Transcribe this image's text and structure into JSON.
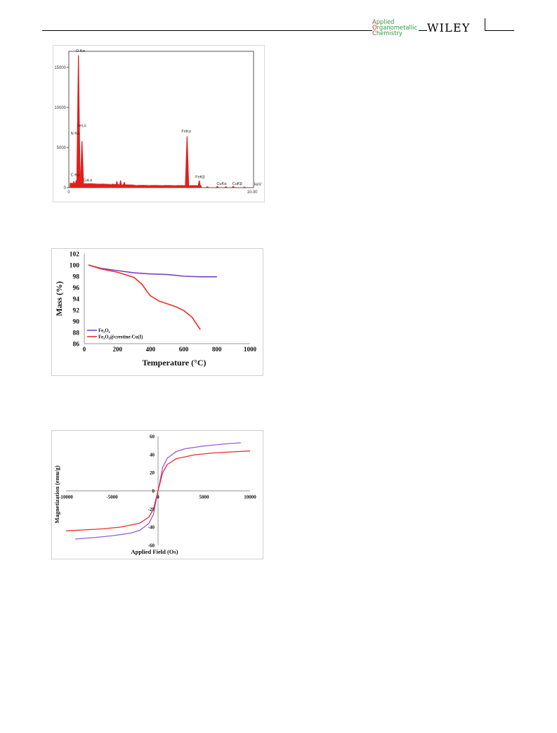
{
  "header": {
    "journal_logo_lines": [
      {
        "first": "A",
        "rest": "pplied"
      },
      {
        "first": "O",
        "rest": "rganometallic"
      },
      {
        "first": "C",
        "rest": "hemistry"
      }
    ],
    "publisher": "WILEY",
    "colors": {
      "journal_red": "#d9262d",
      "journal_green": "#2e9c3c"
    }
  },
  "chart_data": [
    {
      "type": "bar",
      "title": "",
      "xlabel": "keV",
      "ylabel": "",
      "x_tick_labels": [
        "0",
        "10.00"
      ],
      "y_tick_labels": [
        "0",
        "5000",
        "10000",
        "15000"
      ],
      "xlim": [
        0,
        10
      ],
      "ylim": [
        0,
        17000
      ],
      "series_color": "#e0201c",
      "series": [
        {
          "x": [
            0.1,
            0.2,
            0.27,
            0.39,
            0.52,
            0.71,
            0.8,
            0.93,
            1.0,
            1.5,
            2.0,
            2.4,
            2.6,
            2.8,
            3.0,
            3.4,
            4.0,
            5.0,
            6.0,
            6.4,
            6.7,
            7.06,
            7.5,
            8.04,
            8.5,
            8.9,
            9.5
          ],
          "y": [
            200,
            300,
            800,
            900,
            16500,
            5800,
            250,
            400,
            250,
            300,
            200,
            500,
            800,
            900,
            700,
            300,
            200,
            200,
            150,
            6400,
            200,
            900,
            150,
            200,
            150,
            200,
            120
          ]
        }
      ],
      "annotations": [
        "O Kα",
        "FeLα",
        "N Kα",
        "C Kα",
        "CuLα",
        "FeKα",
        "FeKβ",
        "CuKα",
        "CuKβ"
      ]
    },
    {
      "type": "line",
      "title": "",
      "xlabel": "Temperature (°C)",
      "ylabel": "Mass (%)",
      "xlim": [
        0,
        1000
      ],
      "ylim": [
        86,
        102
      ],
      "x_tick_labels": [
        "0",
        "200",
        "400",
        "600",
        "800",
        "1000"
      ],
      "y_tick_labels": [
        "86",
        "88",
        "90",
        "92",
        "94",
        "96",
        "98",
        "100",
        "102"
      ],
      "legend_position": "bottom-left",
      "series": [
        {
          "name": "Fe₃O₄",
          "color": "#7a42c4",
          "x": [
            25,
            100,
            200,
            300,
            400,
            500,
            600,
            700,
            800
          ],
          "y": [
            100,
            99.4,
            99.0,
            98.6,
            98.4,
            98.3,
            98.0,
            97.9,
            97.9
          ]
        },
        {
          "name": "Fe₃O₄@crestine-Cu(I)",
          "color": "#ef2b2b",
          "x": [
            25,
            100,
            200,
            300,
            350,
            380,
            400,
            450,
            500,
            550,
            600,
            650,
            700
          ],
          "y": [
            100,
            99.3,
            98.7,
            97.8,
            96.5,
            95.2,
            94.5,
            93.6,
            93.1,
            92.6,
            91.9,
            90.7,
            88.5
          ]
        }
      ]
    },
    {
      "type": "line",
      "title": "",
      "xlabel": "Applied Field (Os)",
      "ylabel": "Magnetization (emu/g)",
      "xlim": [
        -10000,
        10000
      ],
      "ylim": [
        -60,
        60
      ],
      "x_tick_labels": [
        "-10000",
        "-5000",
        "0",
        "5000",
        "10000"
      ],
      "y_tick_labels": [
        "-60",
        "-40",
        "-20",
        "0",
        "20",
        "40",
        "60"
      ],
      "series": [
        {
          "color": "#9b59d6",
          "x": [
            -9000,
            -7000,
            -5000,
            -3000,
            -2000,
            -1000,
            -500,
            0,
            500,
            1000,
            2000,
            3000,
            5000,
            7000,
            9000
          ],
          "y": [
            -53,
            -51.5,
            -49.5,
            -46.5,
            -43.5,
            -36,
            -26,
            0,
            26,
            36,
            43.5,
            46.5,
            49.5,
            51.5,
            53
          ]
        },
        {
          "color": "#ef2b2b",
          "x": [
            -10000,
            -8000,
            -6000,
            -4000,
            -2000,
            -1000,
            -500,
            0,
            500,
            1000,
            2000,
            4000,
            6000,
            8000,
            10000
          ],
          "y": [
            -44,
            -43,
            -41.8,
            -39.8,
            -35.5,
            -29,
            -20,
            0,
            20,
            29,
            35.5,
            39.8,
            41.8,
            43,
            44
          ]
        }
      ]
    }
  ]
}
